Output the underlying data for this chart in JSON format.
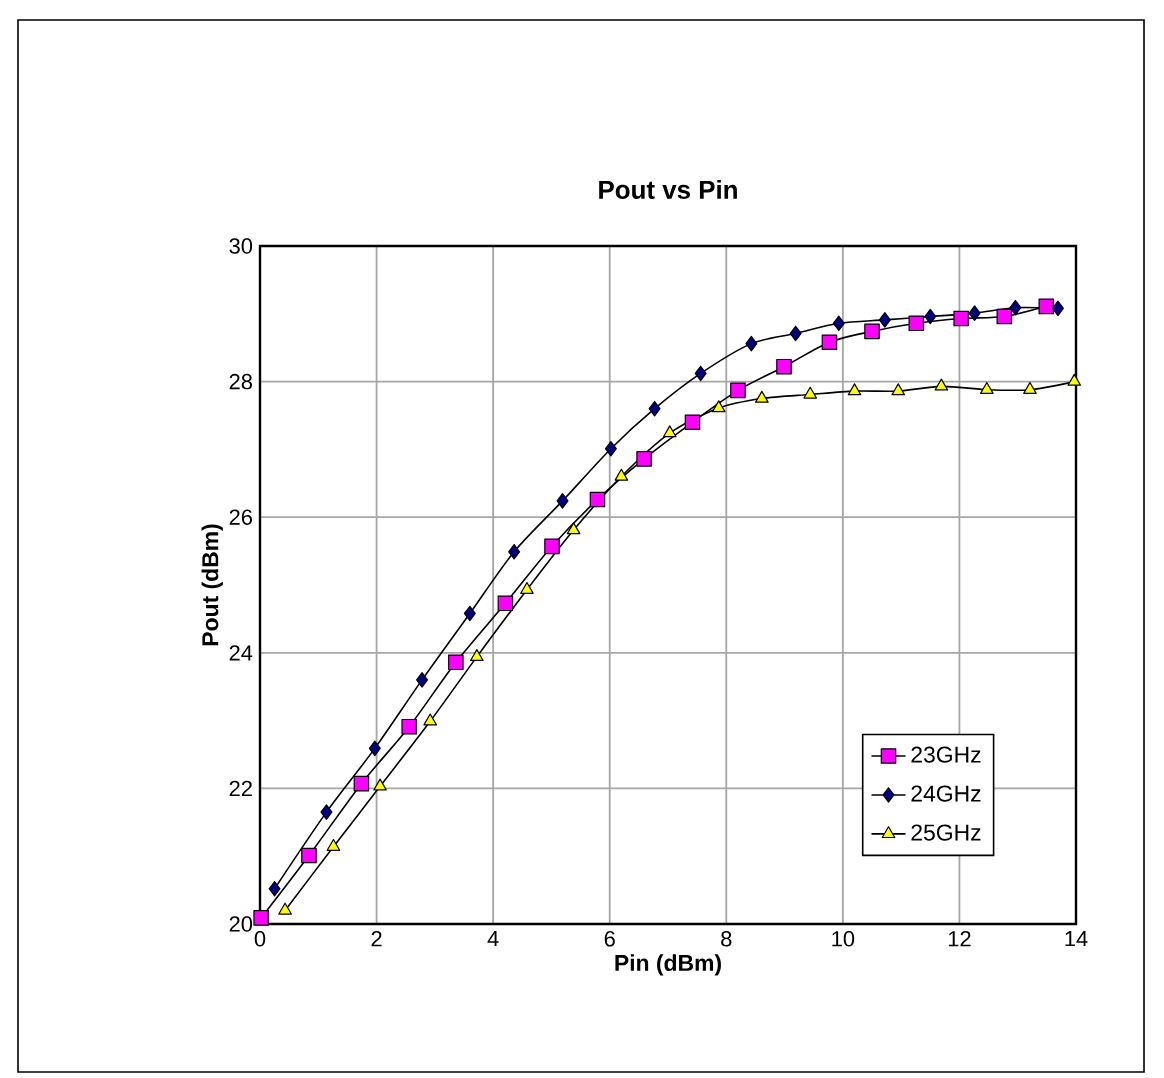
{
  "chart_data": {
    "type": "line",
    "title": "Pout vs Pin",
    "xlabel": "Pin (dBm)",
    "ylabel": "Pout (dBm)",
    "xlim": [
      0,
      14
    ],
    "ylim": [
      20,
      30
    ],
    "xticks": [
      0,
      2,
      4,
      6,
      8,
      10,
      12,
      14
    ],
    "yticks": [
      20,
      22,
      24,
      26,
      28,
      30
    ],
    "grid": true,
    "legend": "bottom right",
    "series": [
      {
        "name": "23GHz",
        "color": "#ff00ff",
        "marker": "square",
        "x": [
          0.02,
          0.84,
          1.74,
          2.56,
          3.36,
          4.21,
          5.01,
          5.79,
          6.59,
          7.42,
          8.2,
          8.99,
          9.77,
          10.5,
          11.26,
          12.03,
          12.77,
          13.49
        ],
        "values": [
          20.09,
          21.01,
          22.07,
          22.91,
          23.86,
          24.73,
          25.57,
          26.26,
          26.86,
          27.4,
          27.87,
          28.22,
          28.58,
          28.74,
          28.86,
          28.93,
          28.96,
          29.11
        ]
      },
      {
        "name": "24GHz",
        "color": "#000080",
        "marker": "diamond",
        "x": [
          0.25,
          1.14,
          1.97,
          2.78,
          3.6,
          4.36,
          5.19,
          6.02,
          6.77,
          7.56,
          8.43,
          9.19,
          9.93,
          10.72,
          11.5,
          12.26,
          12.96,
          13.69
        ],
        "values": [
          20.52,
          21.65,
          22.59,
          23.6,
          24.58,
          25.49,
          26.24,
          27.01,
          27.6,
          28.12,
          28.56,
          28.71,
          28.86,
          28.91,
          28.96,
          29.01,
          29.09,
          29.08
        ]
      },
      {
        "name": "25GHz",
        "color": "#ffff00",
        "marker": "triangle",
        "x": [
          0.43,
          1.26,
          2.06,
          2.92,
          3.72,
          4.58,
          5.38,
          6.2,
          7.03,
          7.87,
          8.61,
          9.44,
          10.2,
          10.95,
          11.69,
          12.47,
          13.21,
          13.97
        ],
        "values": [
          20.2,
          21.14,
          22.03,
          22.99,
          23.94,
          24.93,
          25.81,
          26.6,
          27.24,
          27.61,
          27.75,
          27.81,
          27.86,
          27.86,
          27.93,
          27.88,
          27.88,
          28.0
        ]
      }
    ]
  }
}
